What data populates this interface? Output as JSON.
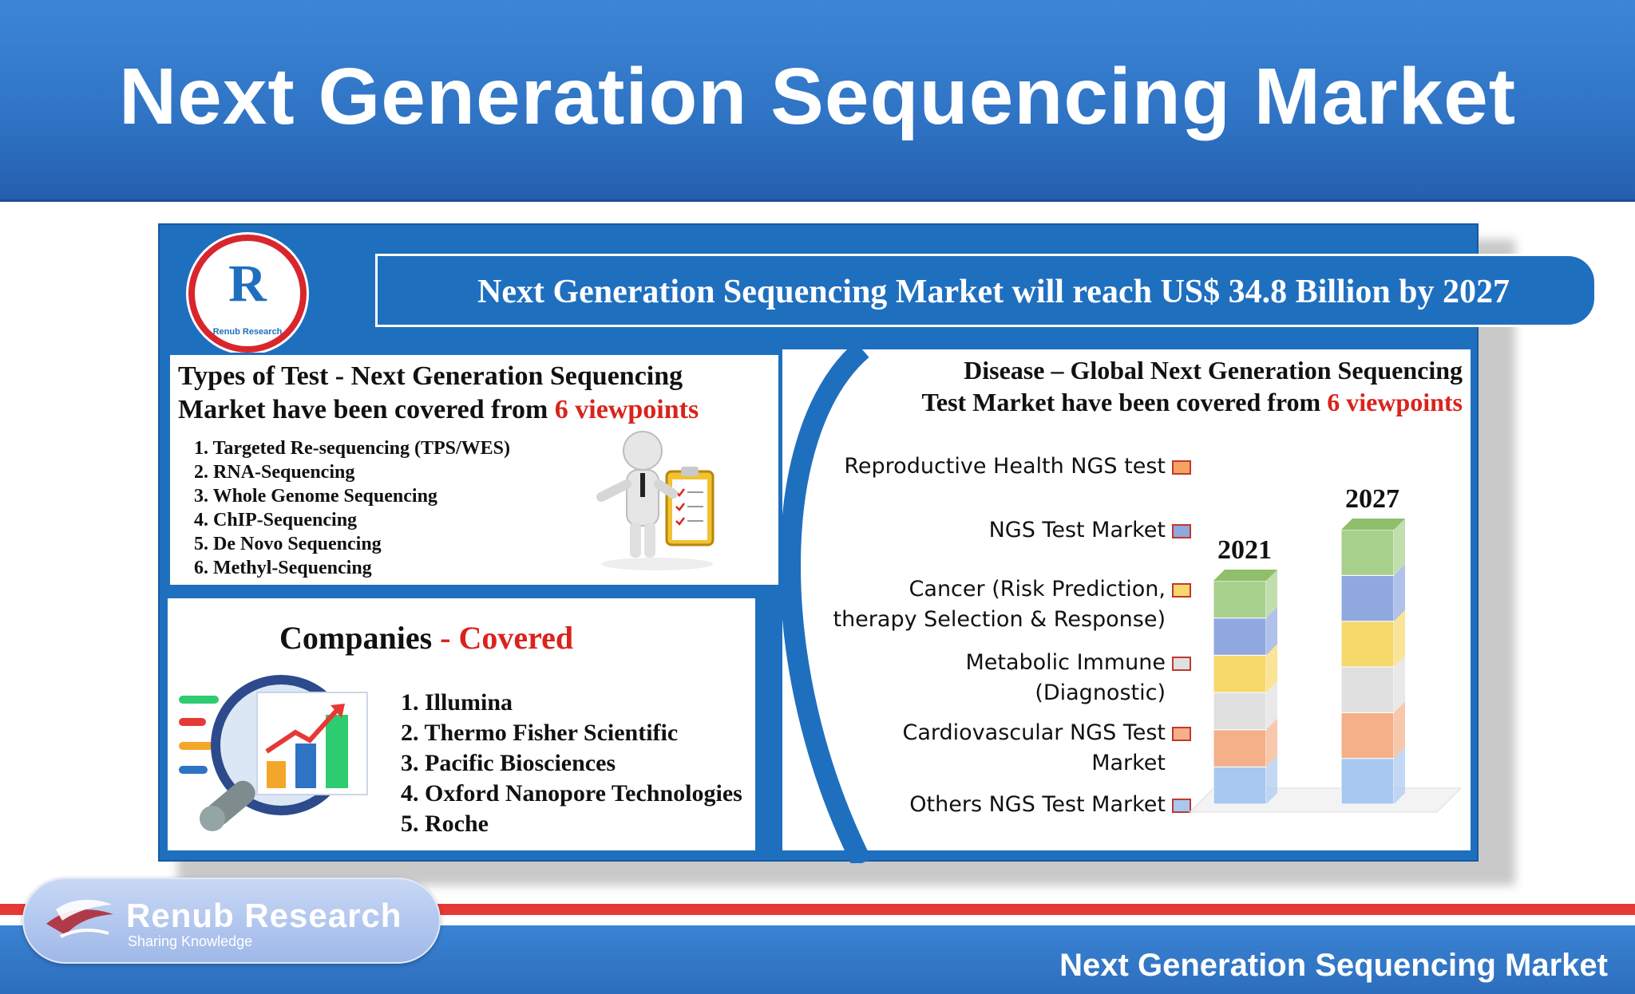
{
  "slide": {
    "title": "Next Generation Sequencing Market",
    "footer_title": "Next Generation Sequencing Market"
  },
  "brand": {
    "name": "Renub Research",
    "tagline": "Sharing Knowledge",
    "logo_small_text": "Renub Research"
  },
  "infographic": {
    "headline": "Next Generation Sequencing Market will reach US$ 34.8 Billion by 2027",
    "types": {
      "title_line1": "Types of Test - Next Generation Sequencing",
      "title_line2_prefix": "Market have been covered from ",
      "title_line2_highlight": "6 viewpoints",
      "items": [
        "1. Targeted Re-sequencing (TPS/WES)",
        "2. RNA-Sequencing",
        "3. Whole Genome Sequencing",
        "4. ChIP-Sequencing",
        "5. De Novo Sequencing",
        "6. Methyl-Sequencing"
      ]
    },
    "companies": {
      "title_prefix": "Companies ",
      "title_highlight": "- Covered",
      "items": [
        "1. Illumina",
        "2. Thermo Fisher Scientific",
        "3. Pacific Biosciences",
        "4. Oxford Nanopore Technologies",
        "5. Roche"
      ]
    },
    "disease": {
      "title_line1": "Disease – Global Next Generation Sequencing",
      "title_line2_prefix": "Test Market have been covered from ",
      "title_line2_highlight": "6 viewpoints",
      "legend": [
        {
          "label_line1": "Reproductive Health NGS test",
          "label_line2": "",
          "color": "#f4a460"
        },
        {
          "label_line1": "NGS Test Market",
          "label_line2": "",
          "color": "#8fa8e0"
        },
        {
          "label_line1": "Cancer (Risk Prediction,",
          "label_line2": "therapy Selection & Response)",
          "color": "#f6d86b"
        },
        {
          "label_line1": "Metabolic Immune",
          "label_line2": "(Diagnostic)",
          "color": "#e0e0e0"
        },
        {
          "label_line1": "Cardiovascular NGS Test",
          "label_line2": "Market",
          "color": "#f5b08a"
        },
        {
          "label_line1": "Others NGS Test Market",
          "label_line2": "",
          "color": "#a9c8ef"
        }
      ]
    }
  },
  "chart_data": {
    "type": "bar",
    "categories": [
      "2021",
      "2027"
    ],
    "segment_colors": [
      "#a9c8ef",
      "#f5b08a",
      "#e0e0e0",
      "#f6d86b",
      "#8fa8e0",
      "#a8d08d"
    ],
    "stack_heights_relative": [
      0.7,
      0.86
    ]
  }
}
